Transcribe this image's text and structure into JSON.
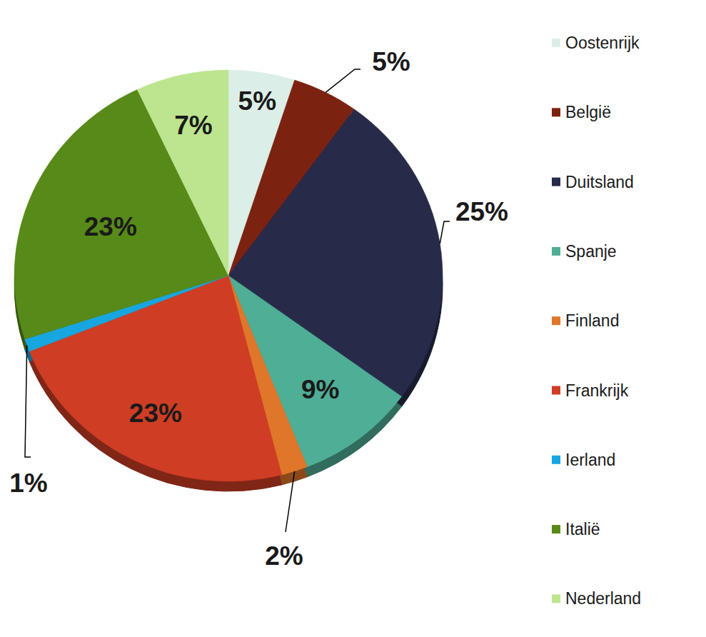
{
  "chart_data": {
    "type": "pie",
    "categories": [
      "Oostenrijk",
      "België",
      "Duitsland",
      "Spanje",
      "Finland",
      "Frankrijk",
      "Ierland",
      "Italië",
      "Nederland"
    ],
    "values": [
      5,
      5,
      25,
      9,
      2,
      23,
      1,
      23,
      7
    ],
    "value_labels": [
      "5%",
      "5%",
      "25%",
      "9%",
      "2%",
      "23%",
      "1%",
      "23%",
      "7%"
    ],
    "colors": [
      "#dceee8",
      "#7c2211",
      "#272b49",
      "#4fae96",
      "#e0762a",
      "#cf3d24",
      "#17a6e0",
      "#578a19",
      "#bde58f"
    ],
    "data_labels": true,
    "legend": "right"
  }
}
